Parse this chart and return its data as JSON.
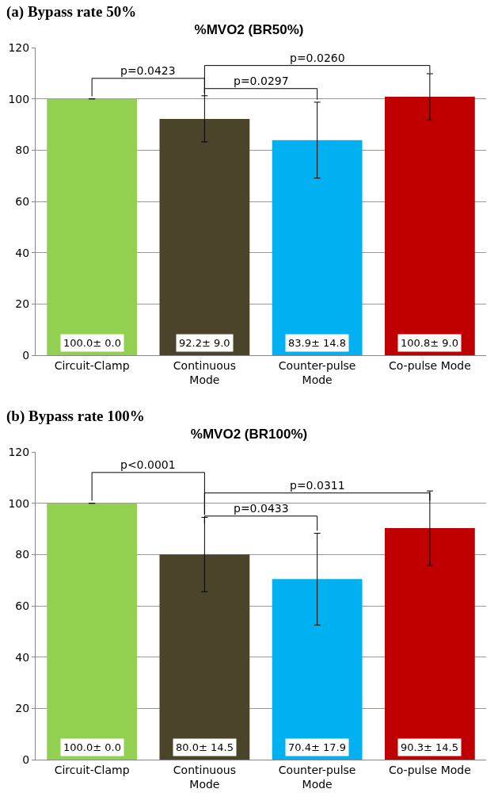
{
  "chart_data": [
    {
      "type": "bar",
      "title": "(a) Bypass rate 50%",
      "subtitle": "%MVO2 (BR50%)",
      "categories": [
        "Circuit-Clamp",
        "Continuous Mode",
        "Counter-pulse Mode",
        "Co-pulse Mode"
      ],
      "values": [
        100.0,
        92.2,
        83.9,
        100.8
      ],
      "colors": [
        "#92d050",
        "#4a442a",
        "#00b0f0",
        "#c00000"
      ],
      "errors": [
        0.0,
        9.0,
        14.8,
        9.0
      ],
      "value_labels": [
        "100.0± 0.0",
        "92.2± 9.0",
        "83.9± 14.8",
        "100.8± 9.0"
      ],
      "annotations": [
        "p=0.0423",
        "p=0.0297",
        "p=0.0260"
      ],
      "ylim": [
        0,
        120
      ],
      "yticks": [
        0,
        20,
        40,
        60,
        80,
        100,
        120
      ],
      "grid": "y"
    },
    {
      "type": "bar",
      "title": "(b) Bypass rate 100%",
      "subtitle": "%MVO2 (BR100%)",
      "categories": [
        "Circuit-Clamp",
        "Continuous Mode",
        "Counter-pulse Mode",
        "Co-pulse Mode"
      ],
      "values": [
        100.0,
        80.0,
        70.4,
        90.3
      ],
      "colors": [
        "#92d050",
        "#4a442a",
        "#00b0f0",
        "#c00000"
      ],
      "errors": [
        0.0,
        14.5,
        17.9,
        14.5
      ],
      "value_labels": [
        "100.0± 0.0",
        "80.0± 14.5",
        "70.4± 17.9",
        "90.3± 14.5"
      ],
      "annotations": [
        "p<0.0001",
        "p=0.0433",
        "p=0.0311"
      ],
      "ylim": [
        0,
        120
      ],
      "yticks": [
        0,
        20,
        40,
        60,
        80,
        100,
        120
      ],
      "grid": "y"
    }
  ]
}
